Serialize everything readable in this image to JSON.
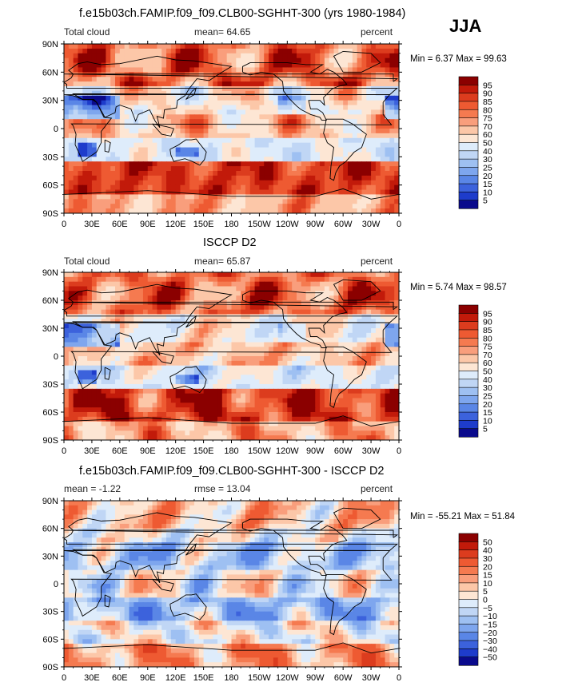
{
  "season": "JJA",
  "chart_data": [
    {
      "type": "heatmap",
      "title": "f.e15b03ch.FAMIP.f09_f09.CLB00-SGHHT-300 (yrs 1980-1984)",
      "left_label": "Total cloud",
      "center_label": "mean=  64.65",
      "right_label": "percent",
      "min_max": "Min =    6.37 Max =  99.63",
      "x_ticks": [
        "0",
        "30E",
        "60E",
        "90E",
        "120E",
        "150E",
        "180",
        "150W",
        "120W",
        "90W",
        "60W",
        "30W",
        "0"
      ],
      "y_ticks": [
        "90N",
        "60N",
        "30N",
        "0",
        "30S",
        "60S",
        "90S"
      ],
      "colorbar_labels": [
        "95",
        "90",
        "85",
        "80",
        "75",
        "70",
        "60",
        "50",
        "40",
        "30",
        "25",
        "20",
        "15",
        "10",
        "5"
      ],
      "colorbar_colors": [
        "#8b0000",
        "#c21a0a",
        "#dc3c1e",
        "#ee5a32",
        "#f57a50",
        "#f99e7c",
        "#fcc7a8",
        "#fde6d4",
        "#deecfb",
        "#c0d6f5",
        "#9ec0f2",
        "#7ea6ee",
        "#5a86e6",
        "#3c62dc",
        "#1e3ccb",
        "#0a0a8c"
      ],
      "grid": false
    },
    {
      "type": "heatmap",
      "title": "ISCCP D2",
      "left_label": "Total cloud",
      "center_label": "mean=  65.87",
      "right_label": "percent",
      "min_max": "Min =    5.74 Max =  98.57",
      "x_ticks": [
        "0",
        "30E",
        "60E",
        "90E",
        "120E",
        "150E",
        "180",
        "150W",
        "120W",
        "90W",
        "60W",
        "30W",
        "0"
      ],
      "y_ticks": [
        "90N",
        "60N",
        "30N",
        "0",
        "30S",
        "60S",
        "90S"
      ],
      "colorbar_labels": [
        "95",
        "90",
        "85",
        "80",
        "75",
        "70",
        "60",
        "50",
        "40",
        "30",
        "25",
        "20",
        "15",
        "10",
        "5"
      ],
      "colorbar_colors": [
        "#8b0000",
        "#c21a0a",
        "#dc3c1e",
        "#ee5a32",
        "#f57a50",
        "#f99e7c",
        "#fcc7a8",
        "#fde6d4",
        "#deecfb",
        "#c0d6f5",
        "#9ec0f2",
        "#7ea6ee",
        "#5a86e6",
        "#3c62dc",
        "#1e3ccb",
        "#0a0a8c"
      ],
      "grid": false
    },
    {
      "type": "heatmap",
      "title": "f.e15b03ch.FAMIP.f09_f09.CLB00-SGHHT-300 - ISCCP D2",
      "left_label": "mean =  -1.22",
      "center_label": "rmse =  13.04",
      "right_label": "percent",
      "min_max": "Min = -55.21 Max =  51.84",
      "x_ticks": [
        "0",
        "30E",
        "60E",
        "90E",
        "120E",
        "150E",
        "180",
        "150W",
        "120W",
        "90W",
        "60W",
        "30W",
        "0"
      ],
      "y_ticks": [
        "90N",
        "60N",
        "30N",
        "0",
        "30S",
        "60S",
        "90S"
      ],
      "colorbar_labels": [
        "50",
        "40",
        "30",
        "20",
        "15",
        "10",
        "5",
        "0",
        "−5",
        "−10",
        "−15",
        "−20",
        "−30",
        "−40",
        "−50"
      ],
      "colorbar_colors": [
        "#8b0000",
        "#c21a0a",
        "#dc3c1e",
        "#ee5a32",
        "#f57a50",
        "#f99e7c",
        "#fcc7a8",
        "#fde6d4",
        "#deecfb",
        "#c0d6f5",
        "#9ec0f2",
        "#7ea6ee",
        "#5a86e6",
        "#3c62dc",
        "#1e3ccb",
        "#0a0a8c"
      ],
      "grid": false
    }
  ]
}
